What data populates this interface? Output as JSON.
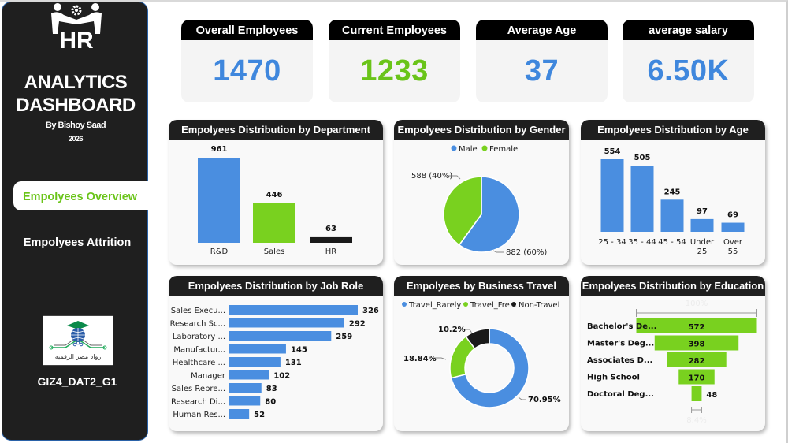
{
  "sidebar": {
    "brand_hr": "HR",
    "brand_line1": "ANALYTICS",
    "brand_line2": "DASHBOARD",
    "author": "By Bishoy Saad",
    "year": "2026",
    "nav": [
      {
        "label": "Empolyees Overview",
        "active": true
      },
      {
        "label": "Empolyees Attrition",
        "active": false
      }
    ],
    "org_logo_text": "رواد مصر الرقمية",
    "group_code": "GIZ4_DAT2_G1"
  },
  "colors": {
    "blue": "#4a8ee0",
    "green": "#79d11f",
    "black": "#1a1a1a",
    "nav_active_text": "#6ac419"
  },
  "kpis": [
    {
      "title": "Overall Employees",
      "value": "1470",
      "color": "#3f87dd"
    },
    {
      "title": "Current Employees",
      "value": "1233",
      "color": "#6ac419"
    },
    {
      "title": "Average Age",
      "value": "37",
      "color": "#3f87dd"
    },
    {
      "title": "average salary",
      "value": "6.50K",
      "color": "#3f87dd"
    }
  ],
  "chart_data": [
    {
      "id": "department",
      "type": "bar",
      "title": "Empolyees Distribution by Department",
      "categories": [
        "R&D",
        "Sales",
        "HR"
      ],
      "values": [
        961,
        446,
        63
      ],
      "bar_colors": [
        "#4a8ee0",
        "#79d11f",
        "#1a1a1a"
      ],
      "xlabel": "",
      "ylabel": "",
      "grid": false
    },
    {
      "id": "gender",
      "type": "pie",
      "title": "Empolyees Distribution by Gender",
      "legend": [
        "Male",
        "Female"
      ],
      "legend_position": "top",
      "categories": [
        "Male",
        "Female"
      ],
      "values": [
        882,
        588
      ],
      "percents": [
        60,
        40
      ],
      "data_labels": [
        "882 (60%)",
        "588 (40%)"
      ],
      "colors": [
        "#4a8ee0",
        "#79d11f"
      ]
    },
    {
      "id": "age",
      "type": "bar",
      "title": "Empolyees Distribution by Age",
      "categories": [
        "25 - 34",
        "35 - 44",
        "45 - 54",
        "Under 25",
        "Over 55"
      ],
      "values": [
        554,
        505,
        245,
        97,
        69
      ],
      "bar_colors": [
        "#4a8ee0"
      ],
      "grid": false
    },
    {
      "id": "job_role",
      "type": "bar",
      "orientation": "horizontal",
      "title": "Empolyees Distribution by Job Role",
      "categories": [
        "Sales Execu...",
        "Research Sc...",
        "Laboratory ...",
        "Manufactur...",
        "Healthcare ...",
        "Manager",
        "Sales Repre...",
        "Research Di...",
        "Human Res..."
      ],
      "values": [
        326,
        292,
        259,
        145,
        131,
        102,
        83,
        80,
        52
      ],
      "bar_colors": [
        "#4a8ee0"
      ],
      "grid": false
    },
    {
      "id": "business_travel",
      "type": "pie",
      "variant": "donut",
      "title": "Empolyees by Business Travel",
      "legend": [
        "Travel_Rarely",
        "Travel_Fre...",
        "Non-Travel"
      ],
      "legend_position": "top",
      "categories": [
        "Travel_Rarely",
        "Travel_Frequently",
        "Non-Travel"
      ],
      "values": [
        70.95,
        18.84,
        10.2
      ],
      "data_labels": [
        "70.95%",
        "18.84%",
        "10.2%"
      ],
      "colors": [
        "#4a8ee0",
        "#79d11f",
        "#1a1a1a"
      ]
    },
    {
      "id": "education",
      "type": "bar",
      "variant": "funnel",
      "title": "Empolyees Distribution by Education",
      "categories": [
        "Bachelor's De...",
        "Master's Deg...",
        "Associates D...",
        "High School",
        "Doctoral Deg..."
      ],
      "values": [
        572,
        398,
        282,
        170,
        48
      ],
      "bar_colors": [
        "#79d11f"
      ],
      "top_label": "100%",
      "bottom_label": "8.4%"
    }
  ]
}
